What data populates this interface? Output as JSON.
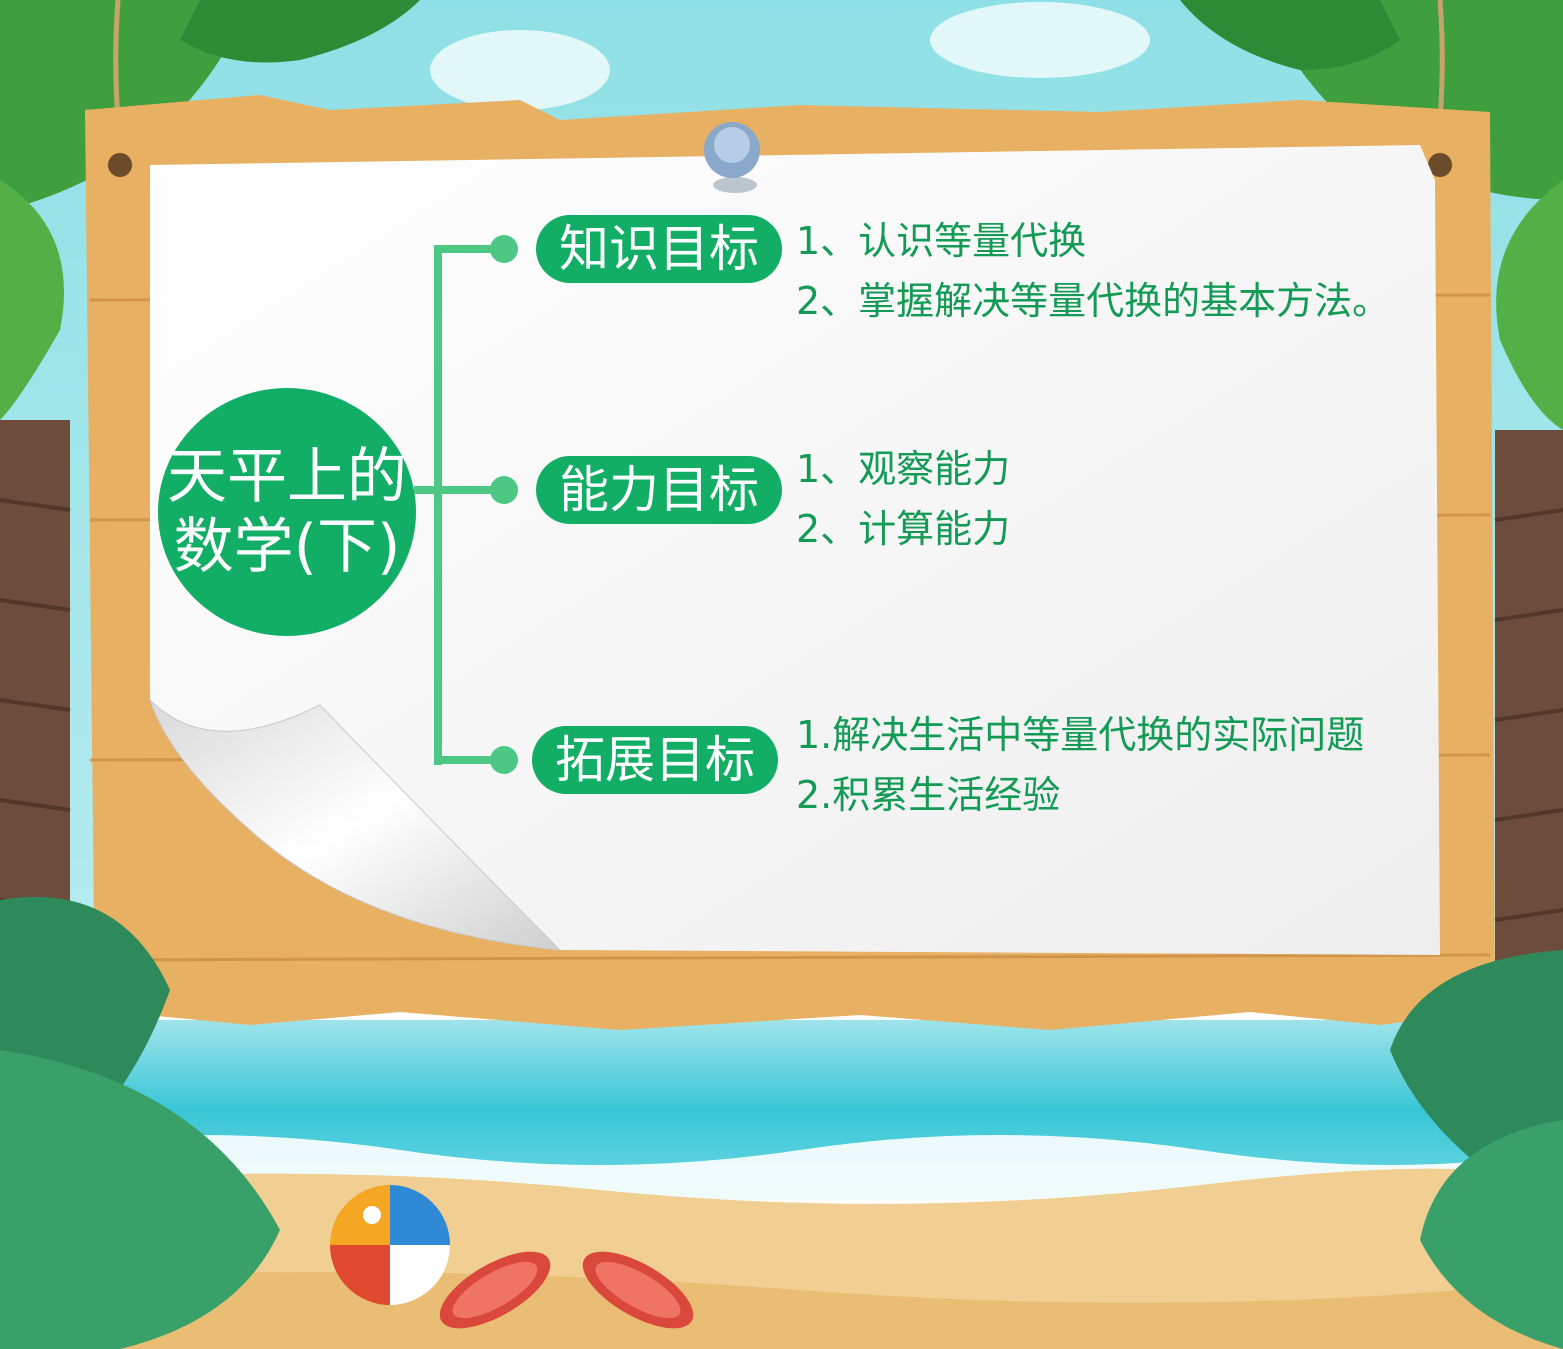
{
  "title": {
    "line1": "天平上的",
    "line2": "数学(下)"
  },
  "branches": [
    {
      "label": "知识目标",
      "items": [
        "1、认识等量代换",
        "2、掌握解决等量代换的基本方法。"
      ]
    },
    {
      "label": "能力目标",
      "items": [
        "1、观察能力",
        "2、计算能力"
      ]
    },
    {
      "label": "拓展目标",
      "items": [
        "1.解决生活中等量代换的实际问题",
        "2.积累生活经验"
      ]
    }
  ],
  "colors": {
    "primary_green": "#12ae66",
    "connector_green": "#4cc784",
    "text_green": "#139a55",
    "sky": "#8fe0e6",
    "board_wood": "#e8b062",
    "paper": "#f6f6f6",
    "sea": "#39c6d6",
    "sand": "#f1cf93"
  }
}
